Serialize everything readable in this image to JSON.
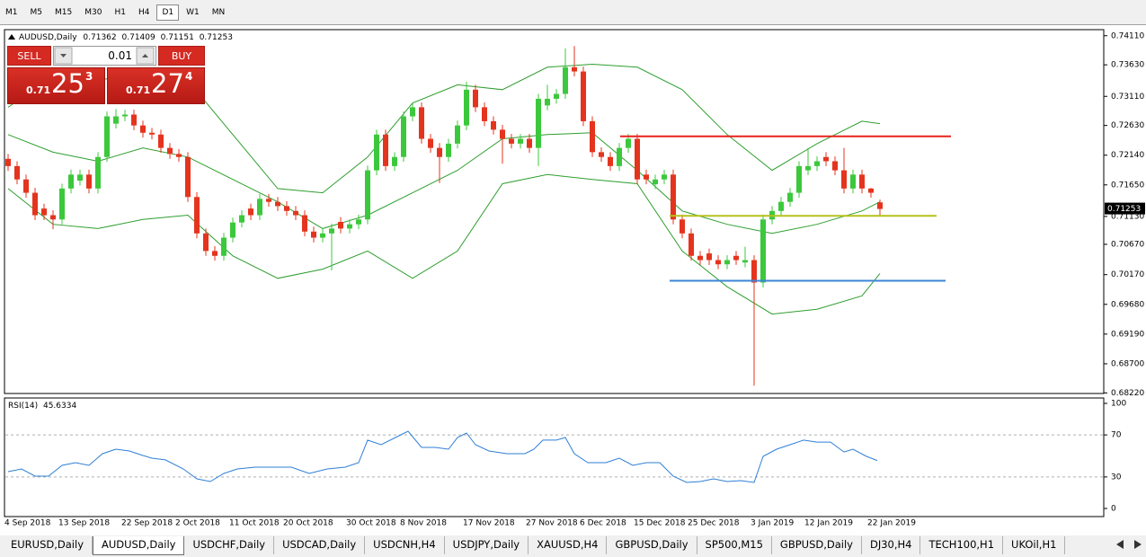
{
  "toolbar": {
    "timeframes": [
      "M1",
      "M5",
      "M15",
      "M30",
      "H1",
      "H4",
      "D1",
      "W1",
      "MN"
    ],
    "active_index": 6
  },
  "trade_panel": {
    "sell": "SELL",
    "buy": "BUY",
    "lot": "0.01",
    "bid": {
      "prefix": "0.71",
      "big": "25",
      "point": "3"
    },
    "ask": {
      "prefix": "0.71",
      "big": "27",
      "point": "4"
    }
  },
  "chart_data": [
    {
      "type": "candlestick",
      "title": "AUDUSD,Daily",
      "categories": [
        "4 Sep 2018",
        null,
        null,
        null,
        null,
        null,
        "13 Sep 2018",
        null,
        null,
        null,
        null,
        null,
        null,
        "22 Sep 2018",
        null,
        null,
        null,
        null,
        null,
        "2 Oct 2018",
        null,
        null,
        null,
        null,
        null,
        "11 Oct 2018",
        null,
        null,
        null,
        null,
        null,
        "20 Oct 2018",
        null,
        null,
        null,
        null,
        null,
        null,
        "30 Oct 2018",
        null,
        null,
        null,
        null,
        null,
        "8 Nov 2018",
        null,
        null,
        null,
        null,
        null,
        null,
        "17 Nov 2018",
        null,
        null,
        null,
        null,
        null,
        null,
        "27 Nov 2018",
        null,
        null,
        null,
        null,
        null,
        "6 Dec 2018",
        null,
        null,
        null,
        null,
        null,
        "15 Dec 2018",
        null,
        null,
        null,
        null,
        null,
        "25 Dec 2018",
        null,
        null,
        null,
        null,
        null,
        null,
        "3 Jan 2019",
        null,
        null,
        null,
        null,
        null,
        "12 Jan 2019",
        null,
        null,
        null,
        null,
        null,
        null,
        "22 Jan 2019",
        null
      ],
      "open": [
        0.7208,
        0.7196,
        0.7174,
        0.7152,
        0.7126,
        0.7115,
        0.7108,
        0.7159,
        0.7172,
        0.7182,
        0.7159,
        0.7211,
        0.7266,
        0.7278,
        0.7281,
        0.7263,
        0.7251,
        0.7248,
        0.7226,
        0.7216,
        0.7211,
        0.7145,
        0.7085,
        0.7056,
        0.7048,
        0.7078,
        0.7103,
        0.7126,
        0.7115,
        0.7142,
        0.7137,
        0.713,
        0.7122,
        0.7115,
        0.7088,
        0.7078,
        0.7085,
        0.7104,
        0.7093,
        0.71,
        0.7108,
        0.7189,
        0.7248,
        0.7196,
        0.7211,
        0.7278,
        0.7293,
        0.7241,
        0.7226,
        0.7211,
        0.7233,
        0.7263,
        0.7322,
        0.7293,
        0.727,
        0.7256,
        0.7241,
        0.7233,
        0.7241,
        0.7226,
        0.7296,
        0.7307,
        0.7315,
        0.7359,
        0.7352,
        0.727,
        0.7219,
        0.7211,
        0.7196,
        0.7226,
        0.7241,
        0.7182,
        0.7166,
        0.7174,
        0.7182,
        0.7108,
        0.7085,
        0.7048,
        0.7052,
        0.7041,
        0.7034,
        0.7048,
        0.7037,
        0.7041,
        0.7004,
        0.7108,
        0.7122,
        0.7137,
        0.7152,
        0.7189,
        0.7196,
        0.7211,
        0.7204,
        0.7189,
        0.7159,
        0.7182,
        0.7159,
        0.71362
      ],
      "high": [
        0.7216,
        0.7204,
        0.7182,
        0.716,
        0.7134,
        0.7123,
        0.7167,
        0.719,
        0.719,
        0.719,
        0.7219,
        0.7286,
        0.729,
        0.7289,
        0.7289,
        0.7271,
        0.7259,
        0.7256,
        0.7234,
        0.7224,
        0.7219,
        0.7153,
        0.7093,
        0.7064,
        0.7086,
        0.7111,
        0.7123,
        0.7134,
        0.715,
        0.715,
        0.7145,
        0.7138,
        0.713,
        0.7123,
        0.7096,
        0.7093,
        0.7101,
        0.7112,
        0.7108,
        0.7116,
        0.7197,
        0.7256,
        0.7256,
        0.7219,
        0.7286,
        0.7301,
        0.7301,
        0.7249,
        0.7234,
        0.7241,
        0.7271,
        0.7335,
        0.733,
        0.7301,
        0.7278,
        0.7264,
        0.7249,
        0.7249,
        0.7249,
        0.7315,
        0.733,
        0.7323,
        0.739,
        0.7394,
        0.736,
        0.7278,
        0.7227,
        0.7219,
        0.7234,
        0.7249,
        0.7249,
        0.719,
        0.7182,
        0.719,
        0.719,
        0.7116,
        0.7093,
        0.7056,
        0.706,
        0.7049,
        0.7049,
        0.7056,
        0.7063,
        0.7049,
        0.7116,
        0.713,
        0.7145,
        0.716,
        0.7204,
        0.7226,
        0.7212,
        0.7219,
        0.7212,
        0.7226,
        0.719,
        0.719,
        0.716,
        0.71409
      ],
      "low": [
        0.7188,
        0.7166,
        0.7144,
        0.7107,
        0.7107,
        0.7092,
        0.71,
        0.7151,
        0.7164,
        0.7151,
        0.7151,
        0.7203,
        0.7258,
        0.727,
        0.7255,
        0.7243,
        0.724,
        0.7218,
        0.7208,
        0.7203,
        0.7137,
        0.7077,
        0.7048,
        0.704,
        0.704,
        0.707,
        0.7095,
        0.7107,
        0.7107,
        0.7129,
        0.7122,
        0.7114,
        0.7107,
        0.708,
        0.707,
        0.707,
        0.7024,
        0.7085,
        0.7085,
        0.7092,
        0.71,
        0.7181,
        0.7188,
        0.7188,
        0.7203,
        0.727,
        0.7233,
        0.7218,
        0.7168,
        0.7203,
        0.7225,
        0.7255,
        0.7285,
        0.7262,
        0.7248,
        0.72,
        0.7225,
        0.7225,
        0.7218,
        0.7196,
        0.7288,
        0.7299,
        0.7307,
        0.7344,
        0.7262,
        0.7211,
        0.7203,
        0.7188,
        0.7188,
        0.7218,
        0.7166,
        0.7166,
        0.7158,
        0.7166,
        0.71,
        0.7077,
        0.704,
        0.7033,
        0.7033,
        0.7026,
        0.7026,
        0.7033,
        0.7029,
        0.6834,
        0.6996,
        0.71,
        0.7114,
        0.7129,
        0.7144,
        0.7181,
        0.7188,
        0.7196,
        0.7181,
        0.7151,
        0.7151,
        0.7151,
        0.7144,
        0.71151
      ],
      "close": [
        0.7196,
        0.7174,
        0.7152,
        0.7115,
        0.7115,
        0.7108,
        0.7159,
        0.7182,
        0.7182,
        0.7159,
        0.7211,
        0.7278,
        0.7278,
        0.7281,
        0.7263,
        0.7251,
        0.7248,
        0.7226,
        0.7216,
        0.7211,
        0.7145,
        0.7085,
        0.7056,
        0.7048,
        0.7078,
        0.7103,
        0.7115,
        0.7115,
        0.7142,
        0.7137,
        0.713,
        0.7122,
        0.7115,
        0.7088,
        0.7078,
        0.7085,
        0.7093,
        0.7093,
        0.71,
        0.7108,
        0.7189,
        0.7248,
        0.7196,
        0.7211,
        0.7278,
        0.7293,
        0.7241,
        0.7226,
        0.7211,
        0.7233,
        0.7263,
        0.7322,
        0.7293,
        0.727,
        0.7256,
        0.7241,
        0.7233,
        0.7241,
        0.7226,
        0.7307,
        0.7307,
        0.7315,
        0.7359,
        0.7352,
        0.727,
        0.7219,
        0.7211,
        0.7196,
        0.7226,
        0.7241,
        0.7174,
        0.7174,
        0.7174,
        0.7182,
        0.7108,
        0.7085,
        0.7048,
        0.7041,
        0.7041,
        0.7034,
        0.7041,
        0.7041,
        0.7041,
        0.7004,
        0.7108,
        0.7122,
        0.7137,
        0.7152,
        0.7196,
        0.7196,
        0.7204,
        0.7204,
        0.7189,
        0.7159,
        0.7182,
        0.7159,
        0.7152,
        0.71253
      ],
      "up_color": "#3cc83c",
      "down_color": "#e4341e",
      "bands": {
        "color": "#2e9e2e",
        "x": [
          0,
          5,
          10,
          15,
          20,
          25,
          30,
          35,
          40,
          45,
          50,
          55,
          60,
          65,
          70,
          75,
          80,
          85,
          90,
          95,
          97
        ],
        "upper": [
          0.7293,
          0.7344,
          0.7337,
          0.7352,
          0.7337,
          0.7248,
          0.7159,
          0.7152,
          0.7211,
          0.73,
          0.733,
          0.7322,
          0.7359,
          0.7364,
          0.7359,
          0.7322,
          0.7248,
          0.7189,
          0.7233,
          0.727,
          0.7266
        ],
        "middle": [
          0.7248,
          0.7219,
          0.7204,
          0.7226,
          0.7211,
          0.7174,
          0.7137,
          0.7093,
          0.7115,
          0.7152,
          0.7189,
          0.7241,
          0.7248,
          0.7251,
          0.7189,
          0.7122,
          0.71,
          0.7085,
          0.71,
          0.7122,
          0.7137
        ],
        "lower": [
          0.7159,
          0.71,
          0.7093,
          0.7108,
          0.7115,
          0.7048,
          0.7011,
          0.7026,
          0.7056,
          0.7011,
          0.7056,
          0.7167,
          0.7182,
          0.7174,
          0.7167,
          0.7056,
          0.6997,
          0.6952,
          0.696,
          0.6982,
          0.7019
        ]
      },
      "levels": [
        {
          "value": 0.7245,
          "color": "#e8221b"
        },
        {
          "value": 0.7114,
          "color": "#b6c21c"
        },
        {
          "value": 0.7007,
          "color": "#3b86d8"
        }
      ],
      "ylim": [
        0.6821,
        0.7421
      ],
      "yticks": [
        {
          "value": 0.7411,
          "label": "0.74110"
        },
        {
          "value": 0.7363,
          "label": "0.73630"
        },
        {
          "value": 0.7311,
          "label": "0.73110"
        },
        {
          "value": 0.7263,
          "label": "0.72630"
        },
        {
          "value": 0.7214,
          "label": "0.72140"
        },
        {
          "value": 0.7165,
          "label": "0.71650"
        },
        {
          "value": 0.7113,
          "label": "0.71130"
        },
        {
          "value": 0.7067,
          "label": "0.70670"
        },
        {
          "value": 0.7017,
          "label": "0.70170"
        },
        {
          "value": 0.6968,
          "label": "0.69680"
        },
        {
          "value": 0.6919,
          "label": "0.69190"
        },
        {
          "value": 0.687,
          "label": "0.68700"
        },
        {
          "value": 0.6822,
          "label": "0.68220"
        }
      ]
    },
    {
      "type": "line",
      "title": "RSI(14)",
      "color": "#2f7fd6",
      "x": [
        0,
        1.5,
        3,
        4.5,
        6,
        7.5,
        9,
        10.5,
        12,
        13.5,
        15,
        16,
        17.5,
        19.5,
        21,
        22.5,
        24,
        25.5,
        27.5,
        29.5,
        31.5,
        33.5,
        35.5,
        37.5,
        39,
        40,
        41.5,
        43.5,
        44.5,
        46,
        47.5,
        49,
        50,
        51,
        52,
        53.5,
        55.5,
        57.5,
        58.5,
        59.5,
        61,
        62,
        63,
        64.5,
        66.5,
        68,
        69.5,
        71,
        72.5,
        74,
        75.5,
        77,
        78.5,
        80,
        81.5,
        83,
        84,
        85.5,
        87,
        88.5,
        90,
        91.5,
        93,
        94,
        95.5,
        96.7
      ],
      "values": [
        35.0,
        37.6,
        30.8,
        30.8,
        41.0,
        43.6,
        41.0,
        52.1,
        56.4,
        54.7,
        50.4,
        47.9,
        46.2,
        37.6,
        28.2,
        25.6,
        33.3,
        37.6,
        39.3,
        39.3,
        39.3,
        33.3,
        37.6,
        39.3,
        43.6,
        65.0,
        60.7,
        69.2,
        73.5,
        58.1,
        58.1,
        56.4,
        67.5,
        71.8,
        60.7,
        54.7,
        52.1,
        52.1,
        56.4,
        65.0,
        65.0,
        67.5,
        52.1,
        43.6,
        43.6,
        47.9,
        41.0,
        43.6,
        43.6,
        30.8,
        24.8,
        25.6,
        28.2,
        25.6,
        26.5,
        24.8,
        49.6,
        56.4,
        60.7,
        65.0,
        63.2,
        63.2,
        53.8,
        56.4,
        49.6,
        45.6334
      ],
      "ylim": [
        0,
        100
      ],
      "yticks": [
        100,
        70,
        30,
        0
      ],
      "levels": [
        70,
        30
      ]
    }
  ],
  "tabs": {
    "items": [
      "EURUSD,Daily",
      "AUDUSD,Daily",
      "USDCHF,Daily",
      "USDCAD,Daily",
      "USDCNH,H4",
      "USDJPY,Daily",
      "XAUUSD,H4",
      "GBPUSD,Daily",
      "SP500,M15",
      "GBPUSD,Daily",
      "DJ30,H4",
      "TECH100,H1",
      "UKOil,H1"
    ],
    "active_index": 1
  }
}
